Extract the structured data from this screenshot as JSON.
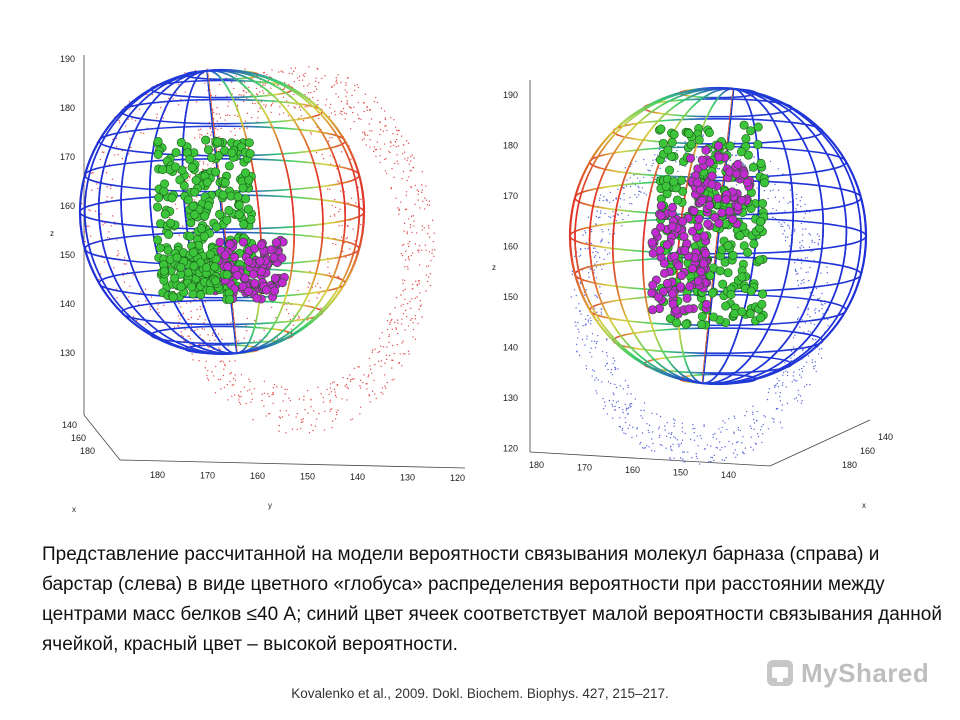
{
  "left_panel": {
    "z_ticks": [
      "190",
      "180",
      "170",
      "160",
      "150",
      "140",
      "130"
    ],
    "y_ticks": [
      "180",
      "170",
      "160",
      "150",
      "140",
      "130",
      "120"
    ],
    "x_ticks": [
      "140",
      "160",
      "180"
    ],
    "z_label": "z",
    "y_label": "y",
    "x_label": "x"
  },
  "right_panel": {
    "z_ticks": [
      "190",
      "180",
      "170",
      "160",
      "150",
      "140",
      "130",
      "120"
    ],
    "y_ticks": [
      "180",
      "170",
      "160",
      "150",
      "140"
    ],
    "x_ticks": [
      "140",
      "160",
      "180"
    ],
    "z_label": "z",
    "x_label": "x"
  },
  "colors": {
    "grid_blue": "#1f2fd6",
    "grid_green": "#3ecf6a",
    "grid_red": "#e0342a",
    "atom_green": "#3cc43a",
    "atom_magenta": "#c02ad0",
    "dots_red": "#e05050",
    "dots_blue": "#5a6ad8"
  },
  "caption": "Представление рассчитанной на модели вероятности связывания молекул барназа (справа) и барстар (слева) в виде цветного «глобуса» распределения вероятности при расстоянии между центрами масс белков ≤40 А; синий цвет ячеек соответствует малой вероятности связывания данной ячейкой, красный цвет – высокой вероятности.",
  "citation": "Kovalenko et al., 2009. Dokl. Biochem. Biophys. 427, 215–217.",
  "watermark": "MyShared"
}
